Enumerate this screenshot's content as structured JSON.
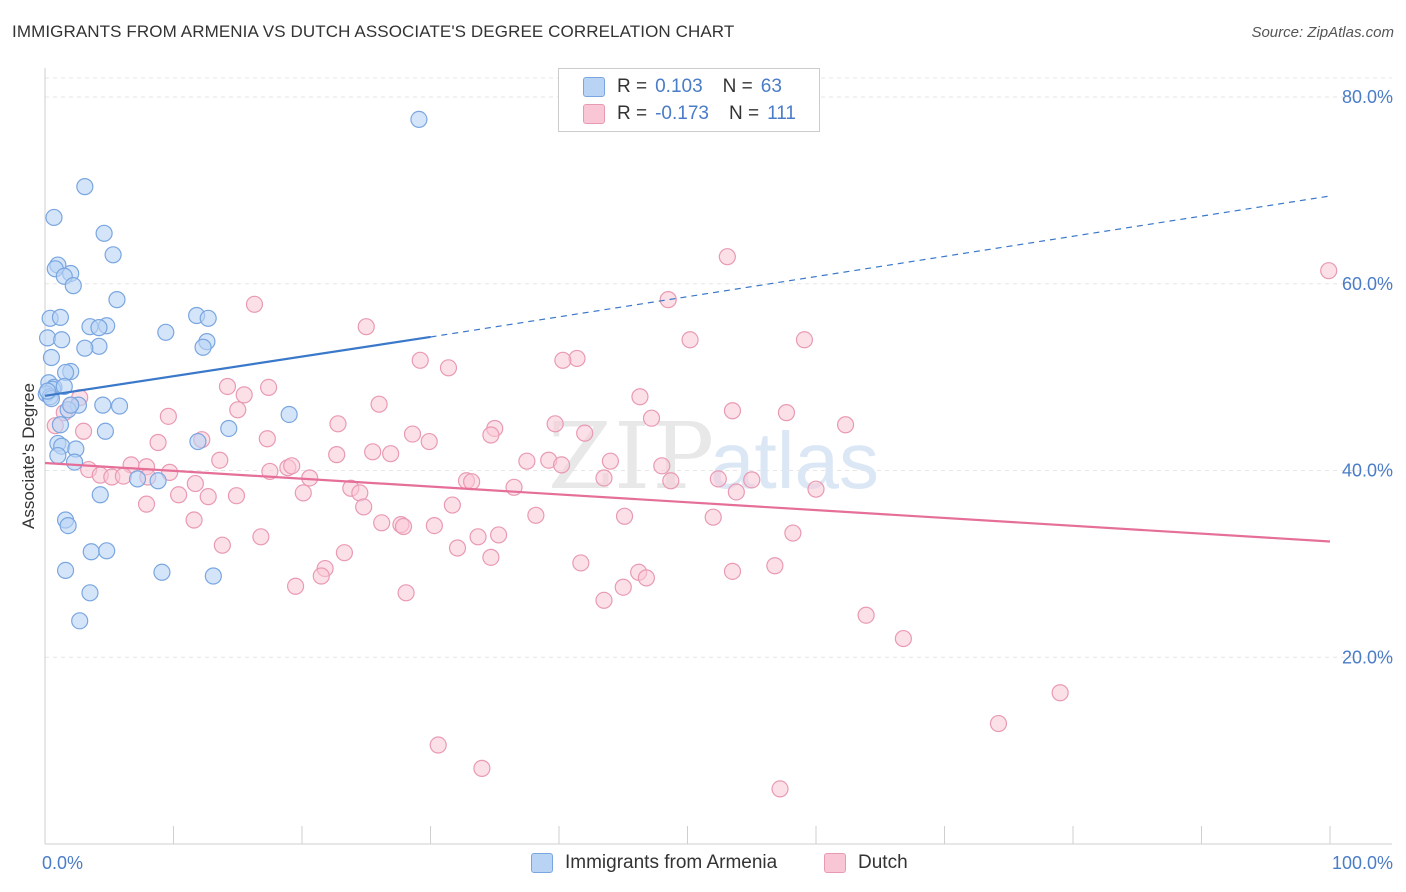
{
  "title": "IMMIGRANTS FROM ARMENIA VS DUTCH ASSOCIATE'S DEGREE CORRELATION CHART",
  "source": "Source: ZipAtlas.com",
  "watermark": {
    "zip": "ZIP",
    "atlas": "atlas"
  },
  "legend": {
    "rows": [
      {
        "r_label": "R =",
        "r_value": "0.103",
        "n_label": "N =",
        "n_value": "63",
        "color": "#b9d3f5",
        "border": "#7aa6e0"
      },
      {
        "r_label": "R =",
        "r_value": "-0.173",
        "n_label": "N =",
        "n_value": "111",
        "color": "#f9c6d6",
        "border": "#e99ab3"
      }
    ]
  },
  "bottom_legend": [
    {
      "label": "Immigrants from Armenia",
      "color": "#b9d3f5",
      "border": "#7aa6e0"
    },
    {
      "label": "Dutch",
      "color": "#f9c6d6",
      "border": "#e99ab3"
    }
  ],
  "chart_data": {
    "type": "scatter",
    "ylabel": "Associate's Degree",
    "xlim": [
      0,
      100
    ],
    "ylim": [
      0,
      82
    ],
    "x_ticks": [
      "0.0%",
      "100.0%"
    ],
    "y_ticks": [
      {
        "value": 20,
        "label": "20.0%"
      },
      {
        "value": 40,
        "label": "40.0%"
      },
      {
        "value": 60,
        "label": "60.0%"
      },
      {
        "value": 80,
        "label": "80.0%"
      }
    ],
    "grid": true,
    "colors": {
      "armenia": "#7aa6e0",
      "armenia_fill": "#b9d3f5",
      "armenia_line": "#3a78c9",
      "dutch": "#e99ab3",
      "dutch_fill": "#f9c6d6",
      "dutch_line": "#e56f98"
    },
    "series": [
      {
        "name": "Immigrants from Armenia",
        "trend": {
          "x0": 0,
          "y0": 48.0,
          "x1": 30,
          "y1": 54.3,
          "dash_x1": 100,
          "dash_y1": 69.4
        },
        "points": [
          [
            29.1,
            77.6
          ],
          [
            3.1,
            70.4
          ],
          [
            0.7,
            67.1
          ],
          [
            4.6,
            65.4
          ],
          [
            5.3,
            63.1
          ],
          [
            1.0,
            62.0
          ],
          [
            0.8,
            61.6
          ],
          [
            2.0,
            61.1
          ],
          [
            1.5,
            60.8
          ],
          [
            2.2,
            59.8
          ],
          [
            5.6,
            58.3
          ],
          [
            0.4,
            56.3
          ],
          [
            1.2,
            56.4
          ],
          [
            11.8,
            56.6
          ],
          [
            12.7,
            56.3
          ],
          [
            4.8,
            55.5
          ],
          [
            3.5,
            55.4
          ],
          [
            4.2,
            55.3
          ],
          [
            9.4,
            54.8
          ],
          [
            0.2,
            54.2
          ],
          [
            1.3,
            54.0
          ],
          [
            12.6,
            53.8
          ],
          [
            4.2,
            53.3
          ],
          [
            12.3,
            53.2
          ],
          [
            3.1,
            53.1
          ],
          [
            0.5,
            52.1
          ],
          [
            2.0,
            50.6
          ],
          [
            1.6,
            50.5
          ],
          [
            0.3,
            49.4
          ],
          [
            0.7,
            48.9
          ],
          [
            0.6,
            48.7
          ],
          [
            0.1,
            48.2
          ],
          [
            0.4,
            47.9
          ],
          [
            0.5,
            47.7
          ],
          [
            2.6,
            47.0
          ],
          [
            4.5,
            47.0
          ],
          [
            5.8,
            46.9
          ],
          [
            1.8,
            46.5
          ],
          [
            19.0,
            46.0
          ],
          [
            1.2,
            44.9
          ],
          [
            14.3,
            44.5
          ],
          [
            4.7,
            44.2
          ],
          [
            11.9,
            43.1
          ],
          [
            1.0,
            42.9
          ],
          [
            1.3,
            42.6
          ],
          [
            2.4,
            42.3
          ],
          [
            1.0,
            41.6
          ],
          [
            2.3,
            40.9
          ],
          [
            7.2,
            39.1
          ],
          [
            8.8,
            38.9
          ],
          [
            4.3,
            37.4
          ],
          [
            1.6,
            34.7
          ],
          [
            1.8,
            34.1
          ],
          [
            3.6,
            31.3
          ],
          [
            4.8,
            31.4
          ],
          [
            1.6,
            29.3
          ],
          [
            9.1,
            29.1
          ],
          [
            13.1,
            28.7
          ],
          [
            3.5,
            26.9
          ],
          [
            2.7,
            23.9
          ],
          [
            2.0,
            47.0
          ],
          [
            0.2,
            48.5
          ],
          [
            1.5,
            49.0
          ]
        ]
      },
      {
        "name": "Dutch",
        "trend": {
          "x0": 0,
          "y0": 40.8,
          "x1": 100,
          "y1": 32.4
        },
        "points": [
          [
            99.9,
            61.4
          ],
          [
            53.1,
            62.9
          ],
          [
            48.5,
            58.3
          ],
          [
            16.3,
            57.8
          ],
          [
            25.0,
            55.4
          ],
          [
            50.2,
            54.0
          ],
          [
            59.1,
            54.0
          ],
          [
            41.4,
            52.0
          ],
          [
            40.3,
            51.8
          ],
          [
            29.2,
            51.8
          ],
          [
            31.4,
            51.0
          ],
          [
            14.2,
            49.0
          ],
          [
            17.4,
            48.9
          ],
          [
            15.5,
            48.1
          ],
          [
            46.3,
            47.9
          ],
          [
            26.0,
            47.1
          ],
          [
            53.5,
            46.4
          ],
          [
            47.2,
            45.6
          ],
          [
            2.7,
            47.8
          ],
          [
            2.0,
            47.0
          ],
          [
            22.8,
            45.0
          ],
          [
            39.7,
            45.0
          ],
          [
            62.3,
            44.9
          ],
          [
            0.8,
            44.8
          ],
          [
            3.0,
            44.2
          ],
          [
            28.6,
            43.9
          ],
          [
            35.0,
            44.5
          ],
          [
            34.7,
            43.8
          ],
          [
            17.3,
            43.4
          ],
          [
            29.9,
            43.1
          ],
          [
            12.2,
            43.3
          ],
          [
            8.8,
            43.0
          ],
          [
            22.7,
            41.7
          ],
          [
            26.9,
            41.8
          ],
          [
            13.6,
            41.1
          ],
          [
            39.2,
            41.1
          ],
          [
            40.2,
            40.6
          ],
          [
            6.7,
            40.6
          ],
          [
            7.9,
            40.4
          ],
          [
            18.9,
            40.3
          ],
          [
            19.2,
            40.5
          ],
          [
            3.4,
            40.1
          ],
          [
            9.7,
            39.8
          ],
          [
            17.5,
            39.9
          ],
          [
            8.0,
            39.3
          ],
          [
            4.3,
            39.5
          ],
          [
            5.2,
            39.3
          ],
          [
            6.1,
            39.4
          ],
          [
            20.6,
            39.2
          ],
          [
            32.8,
            38.9
          ],
          [
            43.5,
            39.2
          ],
          [
            48.7,
            38.9
          ],
          [
            52.4,
            39.1
          ],
          [
            11.7,
            38.6
          ],
          [
            33.2,
            38.8
          ],
          [
            36.5,
            38.2
          ],
          [
            23.8,
            38.1
          ],
          [
            24.5,
            37.6
          ],
          [
            10.4,
            37.4
          ],
          [
            14.9,
            37.3
          ],
          [
            12.7,
            37.2
          ],
          [
            20.1,
            37.6
          ],
          [
            53.8,
            37.7
          ],
          [
            7.9,
            36.4
          ],
          [
            31.7,
            36.3
          ],
          [
            24.8,
            36.1
          ],
          [
            38.2,
            35.2
          ],
          [
            45.1,
            35.1
          ],
          [
            52.0,
            35.0
          ],
          [
            11.6,
            34.7
          ],
          [
            26.2,
            34.4
          ],
          [
            27.7,
            34.2
          ],
          [
            27.9,
            34.0
          ],
          [
            30.3,
            34.1
          ],
          [
            33.7,
            32.9
          ],
          [
            35.3,
            33.1
          ],
          [
            58.2,
            33.3
          ],
          [
            16.8,
            32.9
          ],
          [
            13.8,
            32.0
          ],
          [
            32.1,
            31.7
          ],
          [
            23.3,
            31.2
          ],
          [
            34.7,
            30.7
          ],
          [
            41.7,
            30.1
          ],
          [
            21.8,
            29.5
          ],
          [
            21.5,
            28.7
          ],
          [
            46.2,
            29.1
          ],
          [
            46.8,
            28.5
          ],
          [
            53.5,
            29.2
          ],
          [
            56.8,
            29.8
          ],
          [
            19.5,
            27.6
          ],
          [
            45.0,
            27.5
          ],
          [
            28.1,
            26.9
          ],
          [
            43.5,
            26.1
          ],
          [
            63.9,
            24.5
          ],
          [
            66.8,
            22.0
          ],
          [
            79.0,
            16.2
          ],
          [
            74.2,
            12.9
          ],
          [
            30.6,
            10.6
          ],
          [
            34.0,
            8.1
          ],
          [
            57.2,
            5.9
          ],
          [
            37.5,
            41.0
          ],
          [
            15.0,
            46.5
          ],
          [
            9.6,
            45.8
          ],
          [
            48.0,
            40.5
          ],
          [
            60.0,
            38.0
          ],
          [
            57.7,
            46.2
          ],
          [
            55.0,
            39.0
          ],
          [
            42.0,
            44.0
          ],
          [
            25.5,
            42.0
          ],
          [
            44.0,
            41.0
          ],
          [
            1.5,
            46.2
          ]
        ]
      }
    ]
  }
}
